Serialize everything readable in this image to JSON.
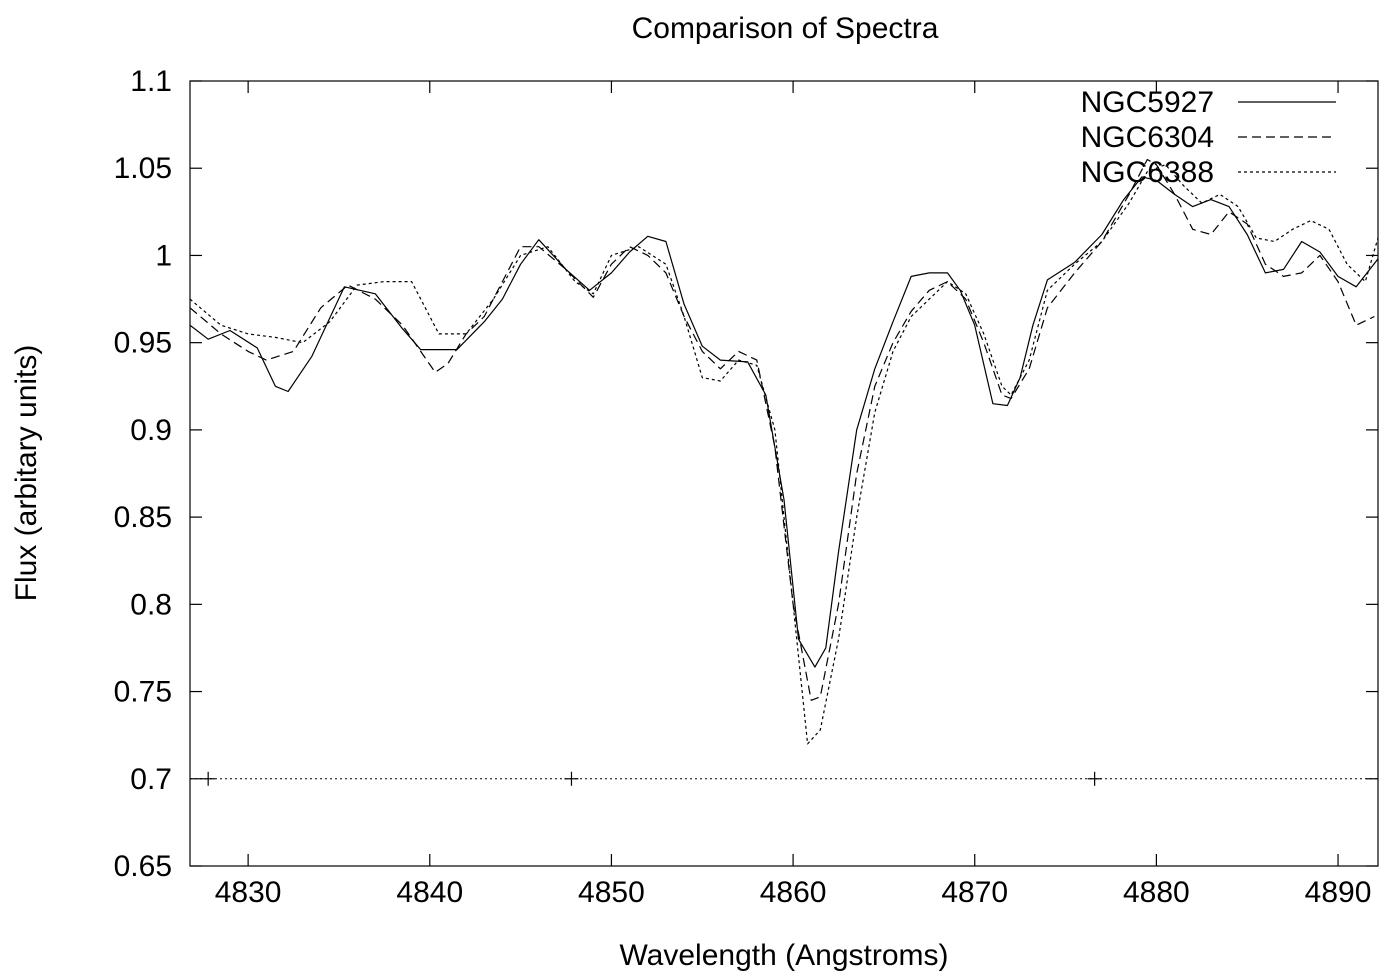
{
  "chart_data": {
    "type": "line",
    "title": "Comparison of Spectra",
    "xlabel": "Wavelength (Angstroms)",
    "ylabel": "Flux (arbitary units)",
    "xlim": [
      4826.8,
      4892.2
    ],
    "ylim": [
      0.65,
      1.1
    ],
    "xticks": [
      4830,
      4840,
      4850,
      4860,
      4870,
      4880,
      4890
    ],
    "xtick_labels": [
      "4830",
      "4840",
      "4850",
      "4860",
      "4870",
      "4880",
      "4890"
    ],
    "yticks": [
      0.65,
      0.7,
      0.75,
      0.8,
      0.85,
      0.9,
      0.95,
      1.0,
      1.05,
      1.1
    ],
    "ytick_labels": [
      "0.65",
      "0.7",
      "0.75",
      "0.8",
      "0.85",
      "0.9",
      "0.95",
      "1",
      "1.05",
      "1.1"
    ],
    "grid": false,
    "legend_position": "top-right",
    "reference_line": {
      "y": 0.7,
      "style": "dotted",
      "markers_x": [
        4827.8,
        4847.8,
        4876.6
      ]
    },
    "series": [
      {
        "name": "NGC5927",
        "style": "solid",
        "x": [
          4826.8,
          4827.8,
          4829.0,
          4830.5,
          4831.5,
          4832.2,
          4833.5,
          4835.3,
          4837.0,
          4838.5,
          4839.5,
          4840.5,
          4841.5,
          4843.0,
          4844.0,
          4845.0,
          4846.0,
          4847.5,
          4848.8,
          4850.0,
          4851.0,
          4852.0,
          4853.0,
          4854.0,
          4855.0,
          4856.0,
          4857.5,
          4858.5,
          4859.5,
          4860.3,
          4861.2,
          4861.8,
          4862.5,
          4863.5,
          4864.5,
          4865.5,
          4866.5,
          4867.5,
          4868.5,
          4869.2,
          4870.0,
          4871.0,
          4871.8,
          4872.5,
          4873.2,
          4874.0,
          4875.5,
          4877.0,
          4878.2,
          4879.2,
          4880.0,
          4881.0,
          4882.0,
          4883.0,
          4884.0,
          4885.0,
          4886.0,
          4887.0,
          4888.0,
          4889.0,
          4890.0,
          4891.0,
          4892.2
        ],
        "values": [
          0.96,
          0.952,
          0.957,
          0.947,
          0.925,
          0.922,
          0.942,
          0.982,
          0.978,
          0.958,
          0.946,
          0.946,
          0.946,
          0.962,
          0.975,
          0.995,
          1.009,
          0.992,
          0.98,
          0.99,
          1.002,
          1.011,
          1.008,
          0.972,
          0.948,
          0.94,
          0.939,
          0.92,
          0.86,
          0.78,
          0.764,
          0.775,
          0.83,
          0.9,
          0.935,
          0.962,
          0.988,
          0.99,
          0.99,
          0.98,
          0.96,
          0.915,
          0.914,
          0.93,
          0.96,
          0.986,
          0.996,
          1.012,
          1.032,
          1.045,
          1.043,
          1.035,
          1.028,
          1.032,
          1.028,
          1.012,
          0.99,
          0.992,
          1.008,
          1.002,
          0.988,
          0.982,
          0.998
        ]
      },
      {
        "name": "NGC6304",
        "style": "dashed",
        "x": [
          4826.8,
          4828.5,
          4830.0,
          4831.0,
          4832.5,
          4834.0,
          4835.5,
          4837.0,
          4838.5,
          4839.5,
          4840.3,
          4841.0,
          4842.0,
          4843.0,
          4844.0,
          4845.0,
          4846.0,
          4847.5,
          4849.0,
          4850.0,
          4851.0,
          4852.0,
          4853.0,
          4854.0,
          4855.0,
          4856.0,
          4857.0,
          4858.0,
          4859.0,
          4860.0,
          4861.0,
          4861.5,
          4862.5,
          4863.5,
          4864.5,
          4865.5,
          4866.5,
          4867.5,
          4868.5,
          4869.5,
          4870.5,
          4871.5,
          4872.0,
          4873.0,
          4874.0,
          4875.5,
          4877.0,
          4878.5,
          4879.5,
          4880.0,
          4881.0,
          4882.0,
          4883.0,
          4884.0,
          4885.0,
          4886.0,
          4887.0,
          4888.0,
          4889.0,
          4890.0,
          4891.0,
          4892.0
        ],
        "values": [
          0.97,
          0.955,
          0.945,
          0.94,
          0.945,
          0.97,
          0.983,
          0.975,
          0.96,
          0.945,
          0.933,
          0.938,
          0.955,
          0.965,
          0.985,
          1.005,
          1.005,
          0.992,
          0.976,
          0.995,
          1.005,
          1.0,
          0.99,
          0.965,
          0.945,
          0.935,
          0.945,
          0.94,
          0.89,
          0.8,
          0.745,
          0.747,
          0.8,
          0.875,
          0.925,
          0.95,
          0.968,
          0.98,
          0.985,
          0.975,
          0.95,
          0.92,
          0.918,
          0.935,
          0.97,
          0.99,
          1.008,
          1.035,
          1.055,
          1.052,
          1.035,
          1.015,
          1.012,
          1.025,
          1.018,
          0.995,
          0.988,
          0.99,
          1.0,
          0.985,
          0.96,
          0.965
        ]
      },
      {
        "name": "NGC6388",
        "style": "dotted",
        "x": [
          4826.8,
          4828.5,
          4830.0,
          4831.5,
          4833.0,
          4834.5,
          4836.0,
          4837.5,
          4839.0,
          4840.5,
          4842.0,
          4843.5,
          4845.0,
          4846.5,
          4848.0,
          4849.0,
          4850.0,
          4851.5,
          4853.0,
          4854.0,
          4855.0,
          4856.0,
          4857.0,
          4858.0,
          4859.0,
          4860.0,
          4860.8,
          4861.5,
          4862.5,
          4863.5,
          4864.5,
          4865.5,
          4866.5,
          4867.5,
          4868.5,
          4869.5,
          4870.5,
          4871.5,
          4872.0,
          4873.0,
          4874.0,
          4875.5,
          4877.0,
          4878.5,
          4879.5,
          4880.5,
          4881.5,
          4882.5,
          4883.5,
          4884.5,
          4885.5,
          4886.5,
          4887.5,
          4888.5,
          4889.5,
          4890.5,
          4891.5,
          4892.2
        ],
        "values": [
          0.975,
          0.96,
          0.955,
          0.953,
          0.95,
          0.962,
          0.983,
          0.985,
          0.985,
          0.955,
          0.955,
          0.975,
          1.0,
          1.005,
          0.985,
          0.978,
          1.0,
          1.005,
          0.995,
          0.965,
          0.93,
          0.928,
          0.94,
          0.937,
          0.9,
          0.8,
          0.72,
          0.728,
          0.78,
          0.85,
          0.91,
          0.945,
          0.965,
          0.975,
          0.985,
          0.978,
          0.955,
          0.925,
          0.92,
          0.94,
          0.98,
          0.995,
          1.008,
          1.03,
          1.048,
          1.052,
          1.04,
          1.03,
          1.035,
          1.028,
          1.01,
          1.008,
          1.015,
          1.02,
          1.015,
          0.995,
          0.985,
          1.01
        ]
      }
    ]
  }
}
